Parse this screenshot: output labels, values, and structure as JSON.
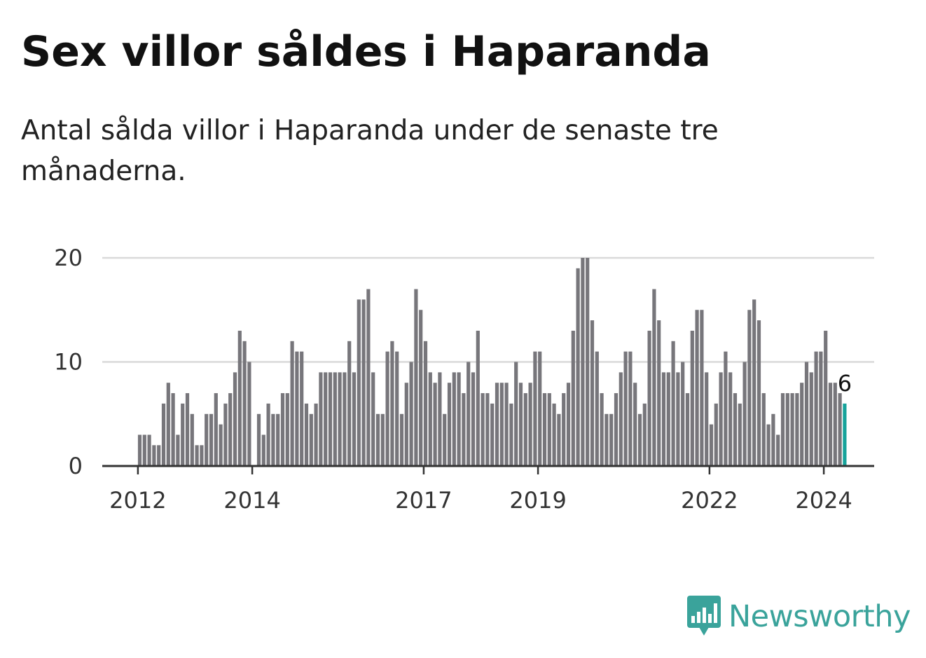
{
  "title": "Sex villor såldes i Haparanda",
  "subtitle": "Antal sålda villor i Haparanda under de senaste tre månaderna.",
  "brand": {
    "name": "Newsworthy",
    "color": "#3aa39b",
    "icon": "bar-chart-speech-bubble-icon"
  },
  "colors": {
    "bar": "#77767b",
    "highlight": "#17a39b",
    "grid": "#d9d9d9",
    "axis": "#333333"
  },
  "chart_data": {
    "type": "bar",
    "title": "Sex villor såldes i Haparanda",
    "xlabel": "",
    "ylabel": "",
    "ylim": [
      0,
      20
    ],
    "yticks": [
      0,
      10,
      20
    ],
    "grid": true,
    "x_tick_labels": [
      "2012",
      "2014",
      "2017",
      "2019",
      "2022",
      "2024"
    ],
    "start": "2012-01",
    "unit": "month",
    "values": [
      3,
      3,
      3,
      2,
      2,
      6,
      8,
      7,
      3,
      6,
      7,
      5,
      2,
      2,
      5,
      5,
      7,
      4,
      6,
      7,
      9,
      13,
      12,
      10,
      0,
      5,
      3,
      6,
      5,
      5,
      7,
      7,
      12,
      11,
      11,
      6,
      5,
      6,
      9,
      9,
      9,
      9,
      9,
      9,
      12,
      9,
      16,
      16,
      17,
      9,
      5,
      5,
      11,
      12,
      11,
      5,
      8,
      10,
      17,
      15,
      12,
      9,
      8,
      9,
      5,
      8,
      9,
      9,
      7,
      10,
      9,
      13,
      7,
      7,
      6,
      8,
      8,
      8,
      6,
      10,
      8,
      7,
      8,
      11,
      11,
      7,
      7,
      6,
      5,
      7,
      8,
      13,
      19,
      20,
      20,
      14,
      11,
      7,
      5,
      5,
      7,
      9,
      11,
      11,
      8,
      5,
      6,
      13,
      17,
      14,
      9,
      9,
      12,
      9,
      10,
      7,
      13,
      15,
      15,
      9,
      4,
      6,
      9,
      11,
      9,
      7,
      6,
      10,
      15,
      16,
      14,
      7,
      4,
      5,
      3,
      7,
      7,
      7,
      7,
      8,
      10,
      9,
      11,
      11,
      13,
      8,
      8,
      7,
      6
    ],
    "highlight_index": 148,
    "last_value_label": "6"
  }
}
